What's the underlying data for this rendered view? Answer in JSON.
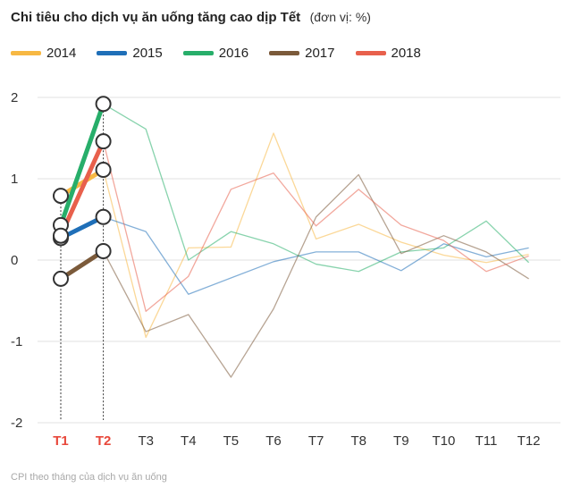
{
  "header": {
    "title": "Chi tiêu cho dịch vụ ăn uống tăng cao dịp Tết",
    "unit": "(đơn vị: %)"
  },
  "footer": {
    "source": "CPI theo tháng của dịch vụ ăn uống"
  },
  "chart_data": {
    "type": "line",
    "title": "Chi tiêu cho dịch vụ ăn uống tăng cao dịp Tết",
    "unit": "(đơn vị: %)",
    "xlabel": "",
    "ylabel": "",
    "categories": [
      "T1",
      "T2",
      "T3",
      "T4",
      "T5",
      "T6",
      "T7",
      "T8",
      "T9",
      "T10",
      "T11",
      "T12"
    ],
    "highlighted_categories": [
      "T1",
      "T2"
    ],
    "highlight_color": "#e8483b",
    "y_ticks": [
      2,
      1,
      0,
      -1,
      -2
    ],
    "ylim": [
      -2,
      2
    ],
    "grid": true,
    "legend_position": "top-left",
    "series": [
      {
        "name": "2014",
        "color": "#f7b843",
        "values": [
          0.79,
          1.11,
          -0.95,
          0.15,
          0.16,
          1.56,
          0.26,
          0.44,
          0.22,
          0.06,
          -0.03,
          0.07
        ]
      },
      {
        "name": "2015",
        "color": "#1f6fb8",
        "values": [
          0.27,
          0.53,
          0.35,
          -0.42,
          -0.22,
          -0.02,
          0.1,
          0.1,
          -0.13,
          0.2,
          0.04,
          0.15
        ]
      },
      {
        "name": "2016",
        "color": "#27ae6a",
        "values": [
          0.43,
          1.92,
          1.61,
          0.0,
          0.35,
          0.2,
          -0.05,
          -0.14,
          0.1,
          0.15,
          0.48,
          -0.03
        ]
      },
      {
        "name": "2017",
        "color": "#7b5a3a",
        "values": [
          -0.23,
          0.11,
          -0.88,
          -0.67,
          -1.44,
          -0.6,
          0.53,
          1.05,
          0.08,
          0.3,
          0.1,
          -0.23
        ]
      },
      {
        "name": "2018",
        "color": "#e8604c",
        "values": [
          0.3,
          1.46,
          -0.63,
          -0.2,
          0.87,
          1.07,
          0.42,
          0.87,
          0.43,
          0.24,
          -0.14,
          0.05
        ]
      }
    ]
  }
}
